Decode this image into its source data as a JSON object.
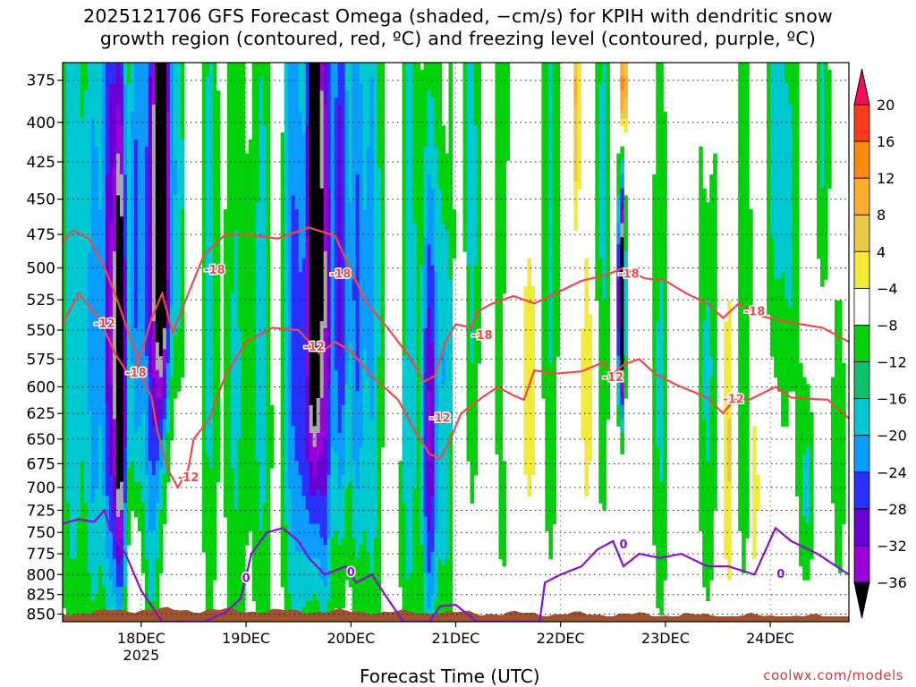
{
  "title_line1": "2025121706 GFS Forecast Omega (shaded, −cm/s) for KPIH with dendritic snow",
  "title_line2": "growth region (contoured, red, ºC) and freezing level (contoured, purple, ºC)",
  "credit": "coolwx.com/models",
  "chart_data": {
    "type": "heatmap",
    "title": "2025121706 GFS Forecast Omega (shaded, −cm/s) for KPIH with dendritic snow growth region (contoured, red, ºC) and freezing level (contoured, purple, ºC)",
    "xlabel": "Forecast Time (UTC)",
    "ylabel": "",
    "x_ticks": [
      "18DEC",
      "19DEC",
      "20DEC",
      "21DEC",
      "22DEC",
      "23DEC",
      "24DEC"
    ],
    "x_tick_year": "2025",
    "y_ticks": [
      "375",
      "400",
      "425",
      "450",
      "475",
      "500",
      "525",
      "550",
      "575",
      "600",
      "625",
      "650",
      "675",
      "700",
      "725",
      "750",
      "775",
      "800",
      "825",
      "850"
    ],
    "y_scale": "log-pressure (hPa), inverted",
    "xlim_days": [
      17.25,
      24.75
    ],
    "ylim_hpa": [
      860,
      365
    ],
    "grid": true,
    "colorbar": {
      "labels": [
        "20",
        "16",
        "12",
        "8",
        "4",
        "−4",
        "−8",
        "−12",
        "−16",
        "−20",
        "−24",
        "−28",
        "−32",
        "−36"
      ],
      "bin_colors": [
        "#ff0a5a",
        "#ff3a1c",
        "#ff8a10",
        "#ffad2f",
        "#e9c84a",
        "#f3ea3a",
        "#ffffff",
        "#00d10a",
        "#0fbf6a",
        "#00c8d0",
        "#0a9cff",
        "#2a30ff",
        "#6a00d4",
        "#9a00d8",
        "#a8a8a8",
        "#000000"
      ]
    },
    "dendritic_contour_labels": [
      "-12",
      "-18",
      "-12",
      "-18",
      "-12",
      "-18",
      "-12",
      "-18",
      "-12",
      "-18",
      "-12",
      "-18"
    ],
    "freezing_contour_labels": [
      "0",
      "0",
      "0",
      "0"
    ],
    "omega_features": [
      {
        "time": "17.8",
        "p_top": 380,
        "p_bottom": 720,
        "omega": -36
      },
      {
        "time": "18.2",
        "p_top": 370,
        "p_bottom": 560,
        "omega": -36
      },
      {
        "time": "19.65",
        "p_top": 370,
        "p_bottom": 580,
        "omega": -36
      },
      {
        "time": "20.7",
        "p_top": 500,
        "p_bottom": 800,
        "omega": -22
      },
      {
        "time": "22.6",
        "p_top": 455,
        "p_bottom": 600,
        "omega": -36
      },
      {
        "time": "22.6",
        "p_top": 370,
        "p_bottom": 395,
        "omega": 20
      }
    ],
    "terrain_color": "#a0522d",
    "colors": {
      "dendritic": "#ef4a4a",
      "freezing": "#8a0fd0",
      "terrain": "#a0522d"
    }
  }
}
